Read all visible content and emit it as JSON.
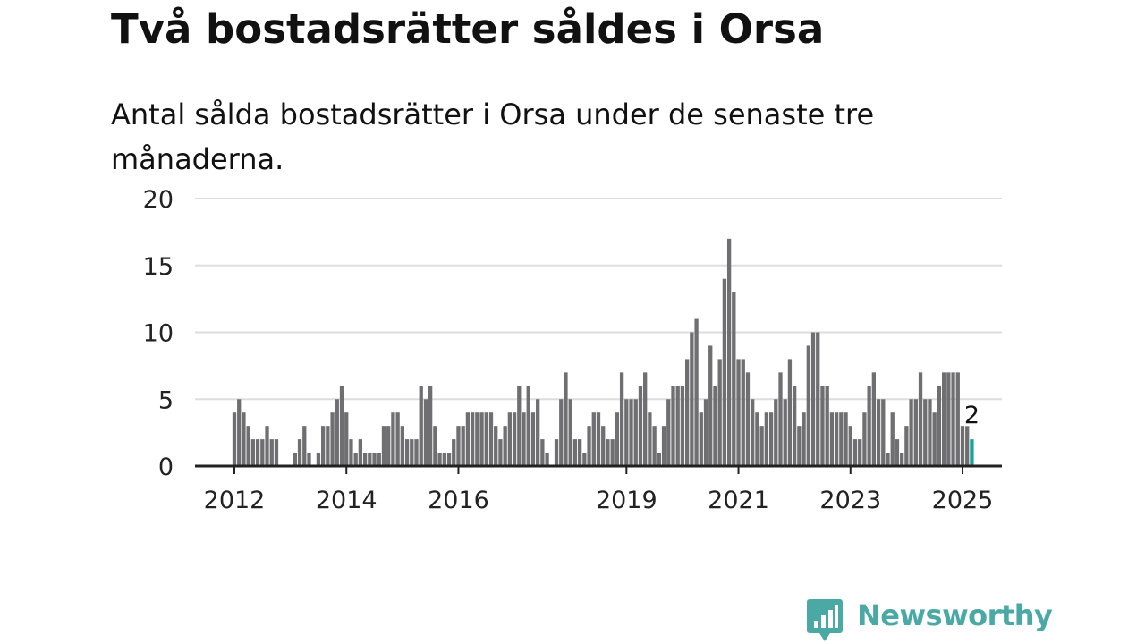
{
  "header": {
    "title": "Två bostadsrätter såldes i Orsa",
    "subtitle": "Antal sålda bostadsrätter i Orsa under de senaste tre månaderna."
  },
  "brand": {
    "name": "Newsworthy",
    "icon": "newsworthy-logo-icon",
    "color": "#4aa9a4"
  },
  "colors": {
    "bar": "#6f6f72",
    "highlight": "#1aa39a",
    "grid": "#dddddd",
    "axis": "#222222"
  },
  "chart_data": {
    "type": "bar",
    "title": "",
    "xlabel": "",
    "ylabel": "",
    "ylim": [
      0,
      20
    ],
    "y_ticks": [
      0,
      5,
      10,
      15,
      20
    ],
    "x_tick_labels": [
      "2012",
      "2014",
      "2016",
      "2019",
      "2021",
      "2023",
      "2025"
    ],
    "grid": true,
    "start": "2012-01",
    "end": "2025-01",
    "values": [
      4,
      5,
      4,
      3,
      2,
      2,
      2,
      3,
      2,
      2,
      0,
      0,
      0,
      1,
      2,
      3,
      1,
      0,
      1,
      3,
      3,
      4,
      5,
      6,
      4,
      2,
      1,
      2,
      1,
      1,
      1,
      1,
      3,
      3,
      4,
      4,
      3,
      2,
      2,
      2,
      6,
      5,
      6,
      3,
      1,
      1,
      1,
      2,
      3,
      3,
      4,
      4,
      4,
      4,
      4,
      4,
      3,
      2,
      3,
      4,
      4,
      6,
      4,
      6,
      4,
      5,
      2,
      1,
      0,
      2,
      5,
      7,
      5,
      2,
      2,
      1,
      3,
      4,
      4,
      3,
      2,
      2,
      4,
      7,
      5,
      5,
      5,
      6,
      7,
      4,
      3,
      1,
      3,
      5,
      6,
      6,
      6,
      8,
      10,
      11,
      4,
      5,
      9,
      6,
      8,
      14,
      17,
      13,
      8,
      8,
      7,
      5,
      4,
      3,
      4,
      4,
      5,
      7,
      5,
      8,
      6,
      3,
      4,
      9,
      10,
      10,
      6,
      6,
      4,
      4,
      4,
      4,
      3,
      2,
      2,
      4,
      6,
      7,
      5,
      5,
      1,
      4,
      2,
      1,
      3,
      5,
      5,
      7,
      5,
      5,
      4,
      6,
      7,
      7,
      7,
      7,
      3,
      3,
      2
    ],
    "highlight": {
      "label": "2",
      "value": 2
    }
  }
}
